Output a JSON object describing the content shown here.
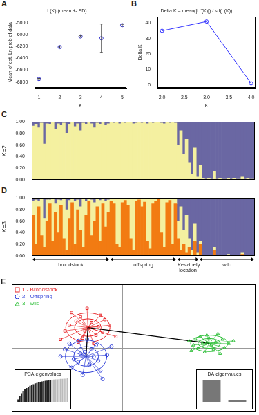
{
  "chart_data": [
    {
      "panel": "A",
      "type": "scatter",
      "title": "L(K) (mean +- SD)",
      "xlabel": "K",
      "ylabel": "Mean of est. Ln prob of data",
      "x": [
        1,
        2,
        3,
        4,
        5
      ],
      "values": [
        -6750,
        -6210,
        -6030,
        -6060,
        -5840
      ],
      "sd": [
        10,
        15,
        12,
        240,
        15
      ],
      "color": "#3333cc",
      "marker": "circle",
      "xlim": [
        0.8,
        5.2
      ],
      "xticks": [
        1,
        2,
        3,
        4,
        5
      ],
      "ylim": [
        -6900,
        -5700
      ],
      "yticks": [
        -6800,
        -6600,
        -6400,
        -6200,
        -6000,
        -5800
      ],
      "grid": false
    },
    {
      "panel": "B",
      "type": "line",
      "title": "Delta K = mean(|L''(K)|) / sd(L(K))",
      "xlabel": "K",
      "ylabel": "Delta K",
      "x": [
        2,
        3,
        4
      ],
      "values": [
        35,
        41,
        1
      ],
      "color": "#3333ff",
      "marker": "circle",
      "xlim": [
        1.9,
        4.1
      ],
      "xticks": [
        {
          "value": 2,
          "label": "2.0"
        },
        {
          "value": 2.5,
          "label": "2.5"
        },
        {
          "value": 3,
          "label": "3.0"
        },
        {
          "value": 3.5,
          "label": "3.5"
        },
        {
          "value": 4,
          "label": "4.0"
        }
      ],
      "ylim": [
        -2,
        44
      ],
      "yticks": [
        0,
        10,
        20,
        30,
        40
      ],
      "grid": false
    },
    {
      "panel": "C",
      "type": "bar",
      "stacked": true,
      "ylabel": "K=2",
      "tick_labels": "y",
      "grid": false,
      "categories": [
        null,
        null,
        null,
        null,
        null,
        null,
        null,
        null,
        null,
        null,
        null,
        null,
        null,
        null,
        null,
        null,
        null,
        null,
        null,
        null,
        null,
        null,
        null,
        null,
        null,
        null,
        null,
        null,
        null,
        null,
        null,
        null,
        null,
        null,
        null,
        null,
        null,
        null,
        null,
        null,
        null,
        null,
        null,
        null,
        null,
        null,
        null,
        null,
        null,
        null,
        null,
        null,
        null,
        null,
        null,
        null,
        null,
        null,
        null,
        null,
        null,
        null,
        null,
        null,
        null,
        null,
        null,
        null,
        null,
        null,
        null,
        null,
        null,
        null,
        null,
        null,
        null,
        null,
        null,
        null
      ],
      "series": [
        {
          "color": "#f4f0a0",
          "values": [
            0.93,
            0.96,
            0.9,
            0.98,
            0.62,
            0.97,
            0.95,
            0.99,
            0.88,
            0.97,
            0.94,
            0.98,
            0.8,
            0.96,
            0.99,
            0.92,
            0.97,
            0.85,
            0.98,
            0.95,
            0.99,
            0.97,
            0.9,
            0.98,
            0.96,
            0.99,
            0.94,
            0.97,
            0.99,
            0.98,
            0.99,
            0.97,
            0.99,
            0.98,
            0.99,
            0.99,
            0.97,
            0.98,
            0.99,
            0.98,
            0.99,
            0.97,
            0.99,
            0.98,
            0.99,
            0.99,
            0.98,
            0.97,
            0.99,
            0.98,
            0.99,
            0.98,
            0.6,
            0.85,
            0.45,
            0.7,
            0.3,
            0.1,
            0.55,
            0.05,
            0.25,
            0.02,
            0.01,
            0.02,
            0.01,
            0.15,
            0.01,
            0.02,
            0.01,
            0.01,
            0.03,
            0.01,
            0.02,
            0.01,
            0.01,
            0.05,
            0.01,
            0.02,
            0.01,
            0.01
          ]
        },
        {
          "color": "#6a67a3",
          "values": [
            0.07,
            0.04,
            0.1,
            0.02,
            0.38,
            0.03,
            0.05,
            0.01,
            0.12,
            0.03,
            0.06,
            0.02,
            0.2,
            0.04,
            0.01,
            0.08,
            0.03,
            0.15,
            0.02,
            0.05,
            0.01,
            0.03,
            0.1,
            0.02,
            0.04,
            0.01,
            0.06,
            0.03,
            0.01,
            0.02,
            0.01,
            0.03,
            0.01,
            0.02,
            0.01,
            0.01,
            0.03,
            0.02,
            0.01,
            0.02,
            0.01,
            0.03,
            0.01,
            0.02,
            0.01,
            0.01,
            0.02,
            0.03,
            0.01,
            0.02,
            0.01,
            0.02,
            0.4,
            0.15,
            0.55,
            0.3,
            0.7,
            0.9,
            0.45,
            0.95,
            0.75,
            0.98,
            0.99,
            0.98,
            0.99,
            0.85,
            0.99,
            0.98,
            0.99,
            0.99,
            0.97,
            0.99,
            0.98,
            0.99,
            0.99,
            0.95,
            0.99,
            0.98,
            0.99,
            0.99
          ]
        }
      ],
      "ylim": [
        0,
        1
      ],
      "yticks": [
        {
          "value": 0,
          "label": "0.00"
        },
        {
          "value": 0.2,
          "label": "0.20"
        },
        {
          "value": 0.4,
          "label": "0.40"
        },
        {
          "value": 0.6,
          "label": "0.60"
        },
        {
          "value": 0.8,
          "label": "0.80"
        },
        {
          "value": 1,
          "label": "1.00"
        }
      ]
    },
    {
      "panel": "D",
      "type": "bar",
      "stacked": true,
      "ylabel": "K=3",
      "tick_labels": "y",
      "grid": false,
      "annotations": [
        "broodstock",
        "offspring",
        "Keszthely location",
        "wild"
      ],
      "categories": [
        null,
        null,
        null,
        null,
        null,
        null,
        null,
        null,
        null,
        null,
        null,
        null,
        null,
        null,
        null,
        null,
        null,
        null,
        null,
        null,
        null,
        null,
        null,
        null,
        null,
        null,
        null,
        null,
        null,
        null,
        null,
        null,
        null,
        null,
        null,
        null,
        null,
        null,
        null,
        null,
        null,
        null,
        null,
        null,
        null,
        null,
        null,
        null,
        null,
        null,
        null,
        null,
        null,
        null,
        null,
        null,
        null,
        null,
        null,
        null,
        null,
        null,
        null,
        null,
        null,
        null,
        null,
        null,
        null,
        null,
        null,
        null,
        null,
        null,
        null,
        null,
        null,
        null,
        null,
        null
      ],
      "series": [
        {
          "color": "#f27b12",
          "values": [
            0.7,
            0.2,
            0.85,
            0.35,
            0.15,
            0.6,
            0.9,
            0.25,
            0.75,
            0.4,
            0.88,
            0.3,
            0.1,
            0.65,
            0.92,
            0.2,
            0.8,
            0.45,
            0.15,
            0.7,
            0.95,
            0.35,
            0.6,
            0.85,
            0.25,
            0.9,
            0.5,
            0.75,
            0.95,
            0.9,
            0.2,
            0.15,
            0.92,
            0.96,
            0.88,
            0.3,
            0.1,
            0.94,
            0.97,
            0.85,
            0.93,
            0.25,
            0.12,
            0.9,
            0.95,
            0.98,
            0.4,
            0.15,
            0.92,
            0.96,
            0.2,
            0.9,
            0.3,
            0.1,
            0.2,
            0.05,
            0.15,
            0.02,
            0.25,
            0.02,
            0.2,
            0.01,
            0.01,
            0.01,
            0.01,
            0.1,
            0.01,
            0.01,
            0.01,
            0.01,
            0.02,
            0.01,
            0.01,
            0.01,
            0.01,
            0.03,
            0.01,
            0.01,
            0.01,
            0.01
          ]
        },
        {
          "color": "#f4f0a0",
          "values": [
            0.25,
            0.77,
            0.09,
            0.63,
            0.5,
            0.37,
            0.07,
            0.74,
            0.15,
            0.57,
            0.08,
            0.68,
            0.7,
            0.31,
            0.07,
            0.74,
            0.17,
            0.4,
            0.83,
            0.25,
            0.04,
            0.62,
            0.32,
            0.13,
            0.71,
            0.09,
            0.44,
            0.22,
            0.04,
            0.09,
            0.79,
            0.84,
            0.07,
            0.03,
            0.11,
            0.69,
            0.89,
            0.05,
            0.02,
            0.14,
            0.06,
            0.74,
            0.87,
            0.09,
            0.04,
            0.01,
            0.59,
            0.84,
            0.07,
            0.03,
            0.79,
            0.09,
            0.3,
            0.75,
            0.25,
            0.65,
            0.15,
            0.08,
            0.3,
            0.03,
            0.05,
            0.01,
            0.0,
            0.01,
            0.0,
            0.05,
            0.0,
            0.01,
            0.0,
            0.0,
            0.01,
            0.0,
            0.01,
            0.0,
            0.0,
            0.02,
            0.0,
            0.01,
            0.0,
            0.0
          ]
        },
        {
          "color": "#6a67a3",
          "values": [
            0.05,
            0.03,
            0.06,
            0.02,
            0.35,
            0.03,
            0.03,
            0.01,
            0.1,
            0.03,
            0.04,
            0.02,
            0.2,
            0.04,
            0.01,
            0.06,
            0.03,
            0.15,
            0.02,
            0.05,
            0.01,
            0.03,
            0.08,
            0.02,
            0.04,
            0.01,
            0.06,
            0.03,
            0.01,
            0.01,
            0.01,
            0.01,
            0.01,
            0.01,
            0.01,
            0.01,
            0.01,
            0.01,
            0.01,
            0.01,
            0.01,
            0.01,
            0.01,
            0.01,
            0.01,
            0.01,
            0.01,
            0.01,
            0.01,
            0.01,
            0.01,
            0.01,
            0.4,
            0.15,
            0.55,
            0.3,
            0.7,
            0.9,
            0.45,
            0.95,
            0.75,
            0.98,
            0.99,
            0.98,
            0.99,
            0.85,
            0.99,
            0.98,
            0.99,
            0.99,
            0.97,
            0.99,
            0.98,
            0.99,
            0.99,
            0.95,
            0.99,
            0.98,
            0.99,
            0.99
          ]
        }
      ],
      "ylim": [
        0,
        1
      ],
      "yticks": [
        {
          "value": 0,
          "label": "0.00"
        },
        {
          "value": 0.2,
          "label": "0.20"
        },
        {
          "value": 0.4,
          "label": "0.40"
        },
        {
          "value": 0.6,
          "label": "0.60"
        },
        {
          "value": 0.8,
          "label": "0.80"
        },
        {
          "value": 1,
          "label": "1.00"
        }
      ]
    },
    {
      "panel": "E",
      "type": "scatter",
      "legend": "top-left",
      "grid": true,
      "tick_labels": false,
      "xlim": [
        -5,
        6
      ],
      "xticks": [
        0
      ],
      "ylim": [
        -4.5,
        4.5
      ],
      "yticks": [
        0
      ],
      "series": [
        {
          "name": "1 - Broodstock",
          "color": "#e8262a",
          "marker": "square",
          "x": [
            -1.5,
            -2.1,
            -1.0,
            -2.6,
            -1.8,
            -0.6,
            -1.2,
            -2.3,
            -0.9,
            -1.6,
            -2.8,
            -0.3,
            -1.4,
            -2.0,
            -1.1,
            -1.7,
            -0.8,
            -2.4,
            -1.3,
            -1.9
          ],
          "y": [
            1.4,
            1.9,
            2.3,
            1.2,
            0.7,
            1.6,
            0.9,
            2.5,
            1.1,
            2.8,
            0.6,
            0.8,
            1.8,
            0.4,
            1.5,
            1.2,
            2.0,
            1.6,
            0.3,
            2.2
          ]
        },
        {
          "name": "2 - Offspring",
          "color": "#3040d8",
          "marker": "circle",
          "x": [
            -1.7,
            -2.2,
            -1.2,
            -2.6,
            -1.5,
            -0.7,
            -2.0,
            -1.0,
            -2.8,
            -1.4,
            -1.8,
            -0.5,
            -2.4,
            -1.1,
            -1.9,
            -1.6,
            -2.3,
            -1.3,
            -0.9,
            -2.0
          ],
          "y": [
            -0.3,
            -0.8,
            0.2,
            -0.1,
            -1.2,
            -0.5,
            0.5,
            -1.6,
            -0.6,
            -0.1,
            -1.9,
            0.1,
            0.3,
            -0.9,
            -0.4,
            0.6,
            -1.4,
            -0.6,
            -2.2,
            -1.0
          ]
        },
        {
          "name": "3 - wild",
          "color": "#2fbf3a",
          "marker": "triangle",
          "x": [
            3.8,
            4.5,
            3.2,
            4.1,
            3.5,
            4.8,
            3.0,
            4.3,
            3.7,
            4.0,
            3.4,
            4.6,
            3.9,
            3.3,
            4.2,
            3.6,
            5.0,
            3.1,
            4.4,
            3.8
          ],
          "y": [
            0.4,
            0.6,
            0.2,
            -0.1,
            0.8,
            0.3,
            0.5,
            1.0,
            -0.3,
            0.2,
            0.0,
            0.0,
            0.7,
            0.6,
            0.4,
            0.3,
            0.5,
            -0.2,
            -0.4,
            0.9
          ]
        }
      ]
    },
    {
      "type": "bar",
      "title": "PCA eigenvalues",
      "tick_labels": false,
      "grid": false,
      "ylim": [
        0,
        100
      ],
      "categories": [
        null,
        null,
        null,
        null,
        null,
        null,
        null,
        null,
        null,
        null,
        null,
        null,
        null,
        null,
        null,
        null,
        null,
        null,
        null,
        null,
        null,
        null,
        null,
        null,
        null,
        null,
        null,
        null,
        null,
        null
      ],
      "values": [
        10,
        25,
        36,
        45,
        52,
        58,
        63,
        67,
        71,
        74,
        77,
        79,
        81,
        83,
        85,
        87,
        88,
        89,
        90,
        91,
        92,
        93,
        94,
        94,
        95,
        96,
        96,
        97,
        97,
        98
      ],
      "colors": [
        "#222222",
        "#222222",
        "#222222",
        "#222222",
        "#222222",
        "#222222",
        "#222222",
        "#222222",
        "#222222",
        "#222222",
        "#222222",
        "#222222",
        "#222222",
        "#222222",
        "#222222",
        "#222222",
        "#222222",
        "#222222",
        "#222222",
        "#222222",
        "#bbbbbb",
        "#bbbbbb",
        "#bbbbbb",
        "#bbbbbb",
        "#bbbbbb",
        "#bbbbbb",
        "#bbbbbb",
        "#bbbbbb",
        "#bbbbbb",
        "#bbbbbb"
      ]
    },
    {
      "type": "bar",
      "title": "DA eigenvalues",
      "tick_labels": false,
      "grid": false,
      "ylim": [
        0,
        13
      ],
      "categories": [
        null,
        null
      ],
      "values": [
        12,
        0.8
      ],
      "colors": [
        "#777777",
        "#777777"
      ]
    }
  ]
}
